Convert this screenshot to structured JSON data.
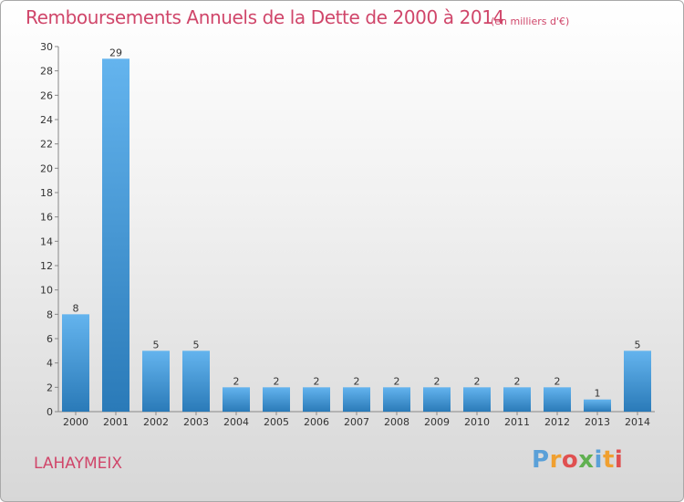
{
  "header": {
    "title": "Remboursements Annuels de la Dette de 2000 à 2014",
    "subtitle": "(en milliers d'€)"
  },
  "footer": {
    "commune": "LAHAYMEIX",
    "logo_letters": [
      "P",
      "r",
      "o",
      "x",
      "i",
      "t",
      "i"
    ],
    "logo_colors": [
      "#5aa0d8",
      "#f0a030",
      "#e05050",
      "#60b050",
      "#5aa0d8",
      "#f0a030",
      "#e05050"
    ]
  },
  "colors": {
    "accent": "#d0466a",
    "bar_top": "#64b4ee",
    "bar_bottom": "#2a7ab8"
  },
  "chart_data": {
    "type": "bar",
    "title": "Remboursements Annuels de la Dette de 2000 à 2014",
    "subtitle": "(en milliers d'€)",
    "categories": [
      "2000",
      "2001",
      "2002",
      "2003",
      "2004",
      "2005",
      "2006",
      "2007",
      "2008",
      "2009",
      "2010",
      "2011",
      "2012",
      "2013",
      "2014"
    ],
    "values": [
      8,
      29,
      5,
      5,
      2,
      2,
      2,
      2,
      2,
      2,
      2,
      2,
      2,
      1,
      5
    ],
    "ylim": [
      0,
      30
    ],
    "yticks": [
      0,
      2,
      4,
      6,
      8,
      10,
      12,
      14,
      16,
      18,
      20,
      22,
      24,
      26,
      28,
      30
    ],
    "xlabel": "",
    "ylabel": "",
    "grid": false,
    "legend": "none"
  }
}
